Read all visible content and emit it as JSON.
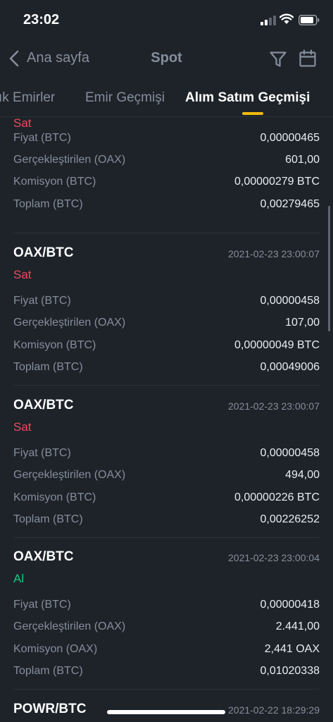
{
  "status_bar": {
    "time": "23:02"
  },
  "nav": {
    "back_label": "Ana sayfa",
    "title": "Spot"
  },
  "tabs": [
    {
      "label": "ık Emirler",
      "active": false
    },
    {
      "label": "Emir Geçmişi",
      "active": false
    },
    {
      "label": "Alım Satım Geçmişi",
      "active": true
    }
  ],
  "colors": {
    "sell": "#f6465d",
    "buy": "#0ecb81",
    "accent": "#f0b90b",
    "background": "#1e2329"
  },
  "trades": [
    {
      "side": "Sat",
      "rows": [
        {
          "label": "Fiyat (BTC)",
          "value": "0,00000465"
        },
        {
          "label": "Gerçekleştirilen (OAX)",
          "value": "601,00"
        },
        {
          "label": "Komisyon (BTC)",
          "value": "0,00000279 BTC"
        },
        {
          "label": "Toplam (BTC)",
          "value": "0,00279465"
        }
      ]
    },
    {
      "pair": "OAX/BTC",
      "time": "2021-02-23 23:00:07",
      "side": "Sat",
      "rows": [
        {
          "label": "Fiyat (BTC)",
          "value": "0,00000458"
        },
        {
          "label": "Gerçekleştirilen (OAX)",
          "value": "107,00"
        },
        {
          "label": "Komisyon (BTC)",
          "value": "0,00000049 BTC"
        },
        {
          "label": "Toplam (BTC)",
          "value": "0,00049006"
        }
      ]
    },
    {
      "pair": "OAX/BTC",
      "time": "2021-02-23 23:00:07",
      "side": "Sat",
      "rows": [
        {
          "label": "Fiyat (BTC)",
          "value": "0,00000458"
        },
        {
          "label": "Gerçekleştirilen (OAX)",
          "value": "494,00"
        },
        {
          "label": "Komisyon (BTC)",
          "value": "0,00000226 BTC"
        },
        {
          "label": "Toplam (BTC)",
          "value": "0,00226252"
        }
      ]
    },
    {
      "pair": "OAX/BTC",
      "time": "2021-02-23 23:00:04",
      "side": "Al",
      "rows": [
        {
          "label": "Fiyat (BTC)",
          "value": "0,00000418"
        },
        {
          "label": "Gerçekleştirilen (OAX)",
          "value": "2.441,00"
        },
        {
          "label": "Komisyon (OAX)",
          "value": "2,441 OAX"
        },
        {
          "label": "Toplam (BTC)",
          "value": "0,01020338"
        }
      ]
    },
    {
      "pair": "POWR/BTC",
      "time": "2021-02-22 18:29:29"
    }
  ]
}
